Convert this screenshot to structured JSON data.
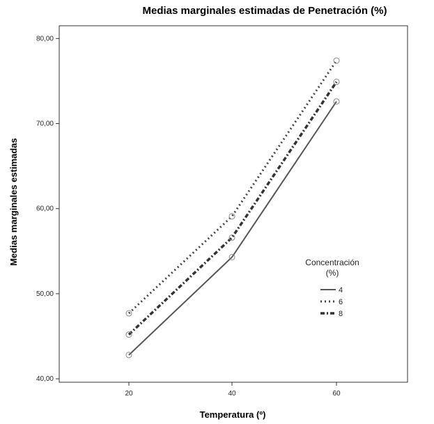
{
  "chart_data": {
    "type": "line",
    "title": "Medias marginales estimadas de Penetración (%)",
    "xlabel": "Temperatura (º)",
    "ylabel": "Medias marginales estimadas",
    "categories": [
      "20",
      "40",
      "60"
    ],
    "y_ticks": [
      "40,00",
      "50,00",
      "60,00",
      "70,00",
      "80,00"
    ],
    "ylim": [
      39.6,
      81.5
    ],
    "legend": {
      "title_line1": "Concentración",
      "title_line2": "(%)",
      "placement": "center-right"
    },
    "grid": false,
    "series": [
      {
        "name": "4",
        "values": [
          42.8,
          54.3,
          72.6
        ],
        "color": "#555555",
        "style": "solid"
      },
      {
        "name": "6",
        "values": [
          47.7,
          59.1,
          77.4
        ],
        "color": "#444444",
        "style": "dotted"
      },
      {
        "name": "8",
        "values": [
          45.2,
          56.6,
          74.9
        ],
        "color": "#333333",
        "style": "dash-dot"
      }
    ]
  }
}
